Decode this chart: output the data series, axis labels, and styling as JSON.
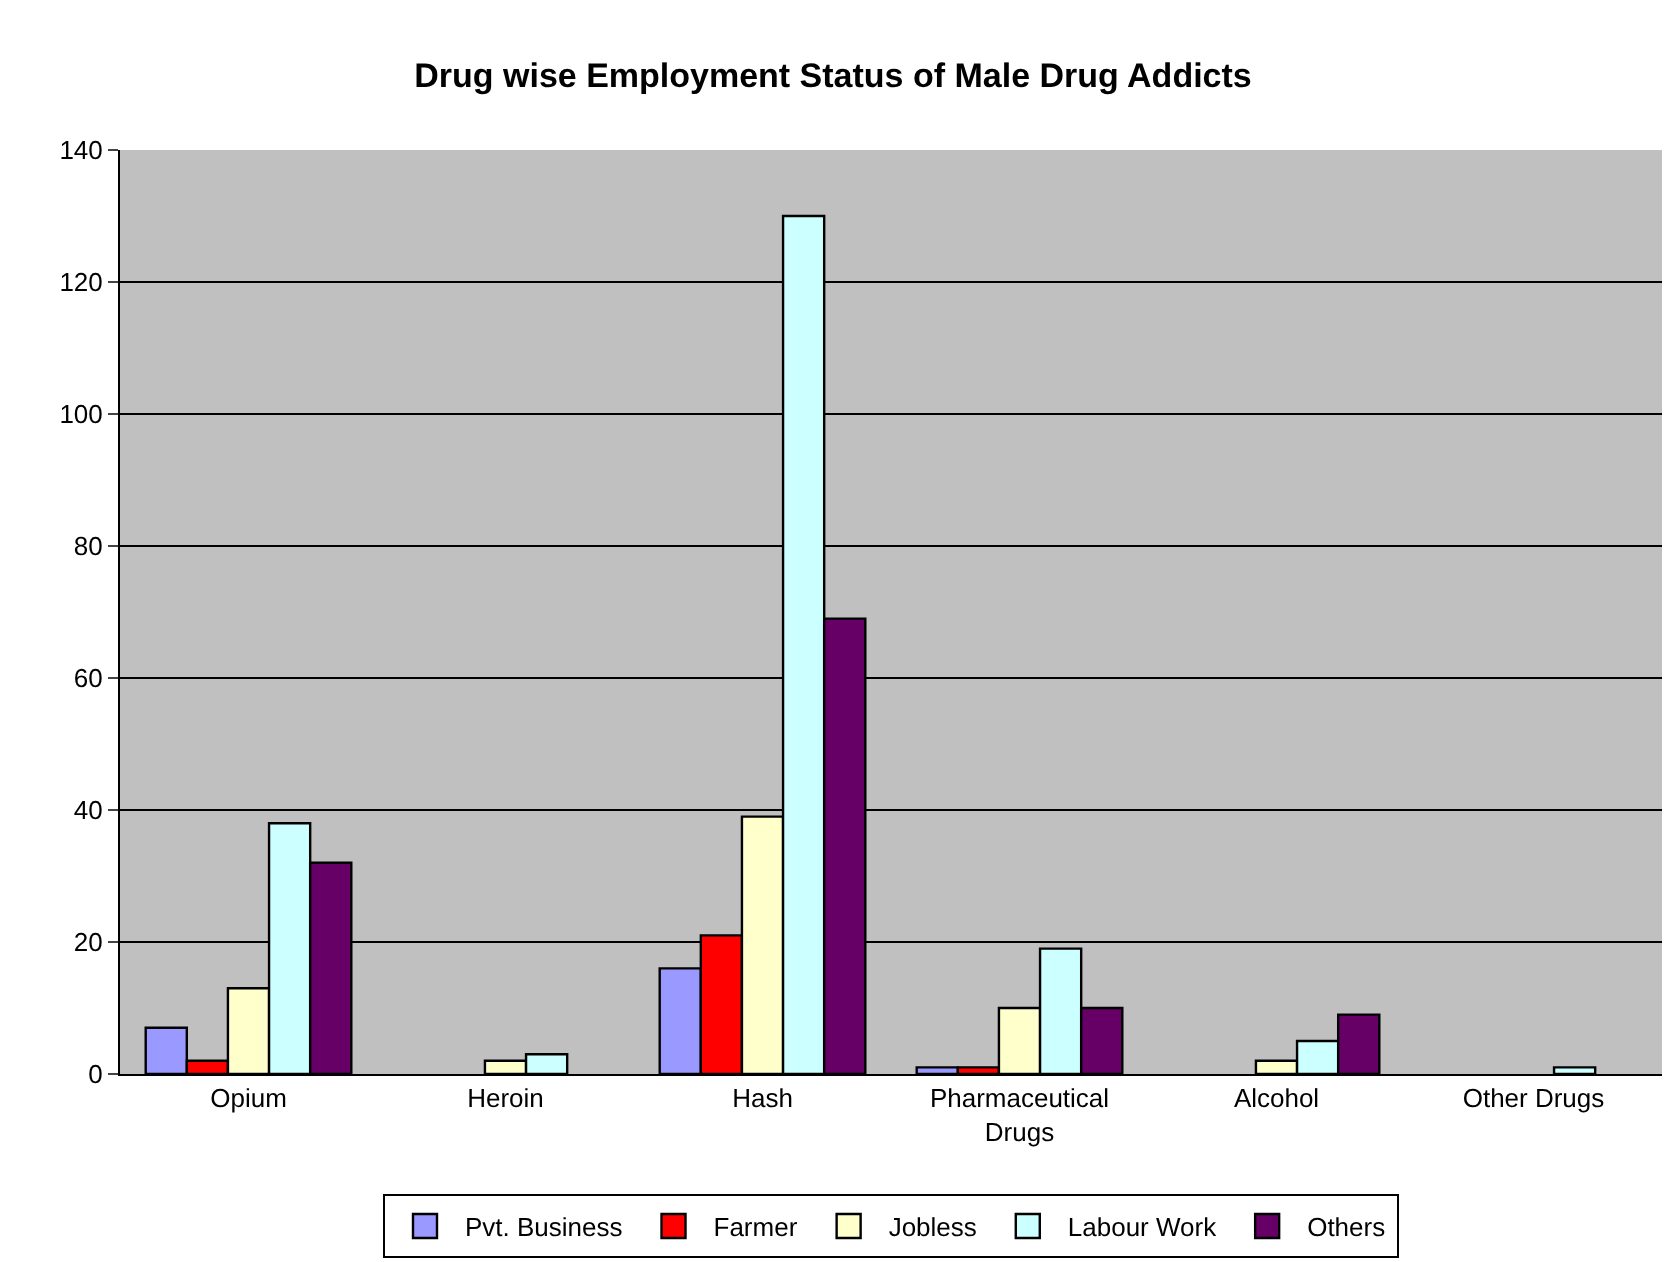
{
  "chart_data": {
    "type": "bar",
    "title": "Drug wise Employment Status of Male Drug Addicts",
    "categories": [
      "Opium",
      "Heroin",
      "Hash",
      "Pharmaceutical\nDrugs",
      "Alcohol",
      "Other Drugs"
    ],
    "series": [
      {
        "name": "Pvt. Business",
        "color": "#9999ff",
        "values": [
          7,
          0,
          16,
          1,
          0,
          0
        ]
      },
      {
        "name": "Farmer",
        "color": "#ff0000",
        "values": [
          2,
          0,
          21,
          1,
          0,
          0
        ]
      },
      {
        "name": "Jobless",
        "color": "#ffffcc",
        "values": [
          13,
          2,
          39,
          10,
          2,
          0
        ]
      },
      {
        "name": "Labour Work",
        "color": "#ccffff",
        "values": [
          38,
          3,
          130,
          19,
          5,
          1
        ]
      },
      {
        "name": "Others",
        "color": "#660066",
        "values": [
          32,
          0,
          69,
          10,
          9,
          0
        ]
      }
    ],
    "ylim": [
      0,
      140
    ],
    "yticks": [
      0,
      20,
      40,
      60,
      80,
      100,
      120,
      140
    ],
    "grid": "y",
    "legend": "bottom"
  }
}
